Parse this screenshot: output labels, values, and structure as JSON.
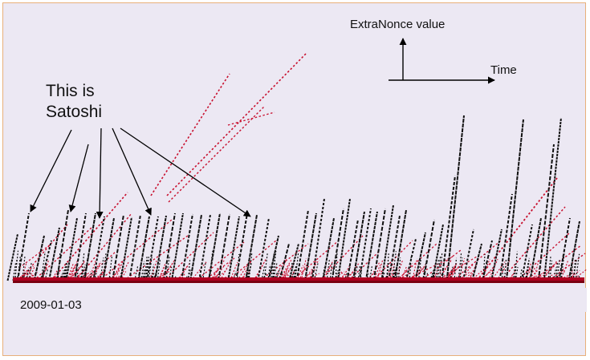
{
  "chart_data": {
    "type": "scatter",
    "title": "",
    "xlabel": "Time",
    "ylabel": "ExtraNonce value",
    "x_start_label": "2009-01-03",
    "annotation": "This is Satoshi",
    "grid": false,
    "legend": "none",
    "series": [
      {
        "color": "#111111",
        "pattern": "near-vertical dotted ramps, each rising from zero and resetting"
      },
      {
        "color": "#c8102e",
        "pattern": "shallower dotted ramps, each rising from zero"
      }
    ]
  },
  "colors": {
    "background": "#ece8f3",
    "border": "#e8b07a",
    "black_series": "#111111",
    "red_series": "#c8102e",
    "baseline": "#b00020"
  }
}
